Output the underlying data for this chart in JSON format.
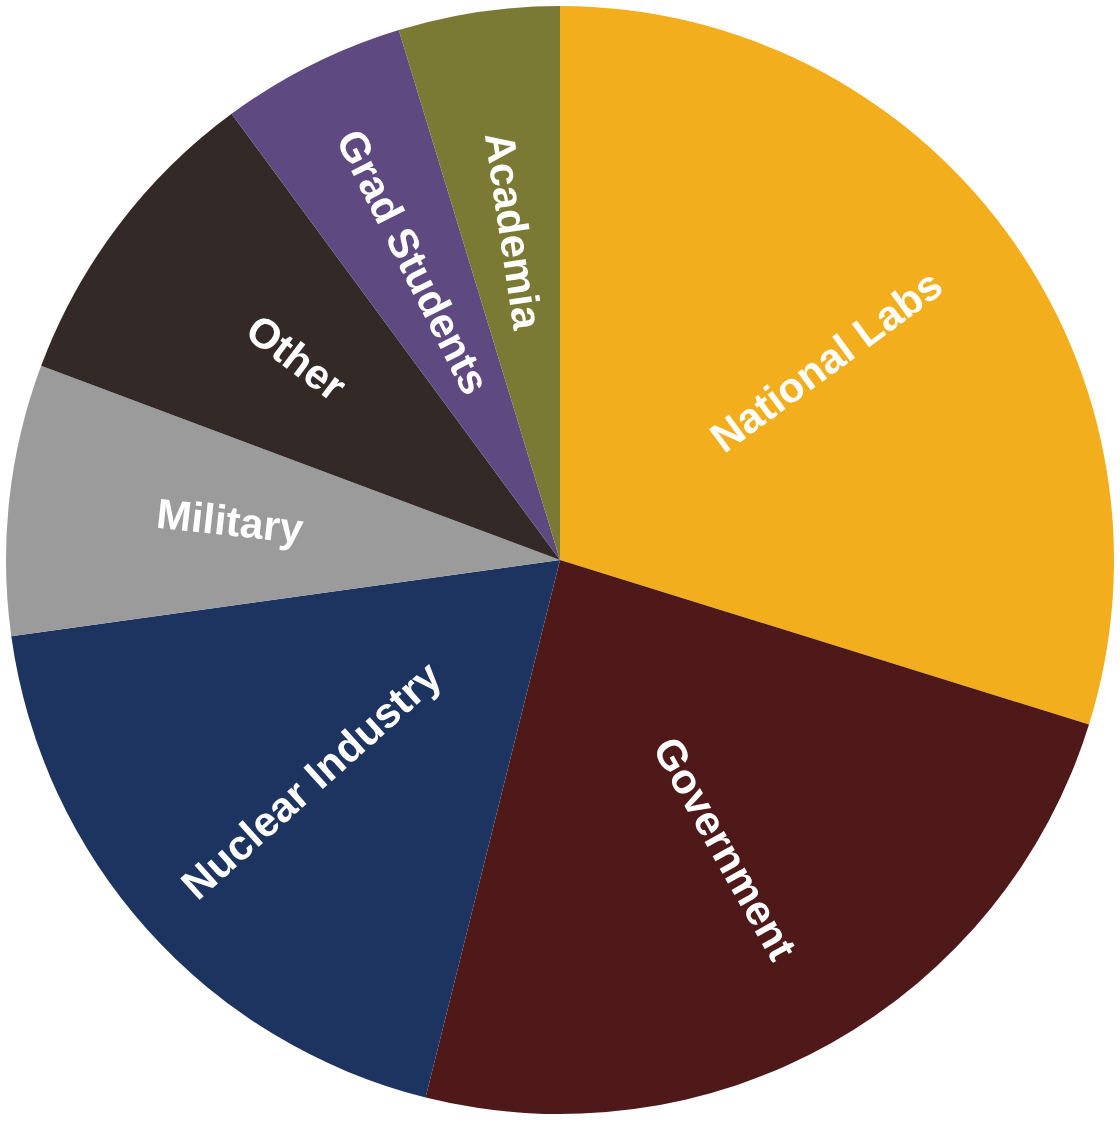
{
  "chart_data": {
    "type": "pie",
    "categories": [
      "National Labs",
      "Government",
      "Nuclear Industry",
      "Military",
      "Other",
      "Grad Students",
      "Academia"
    ],
    "values": [
      29.8,
      24.1,
      18.9,
      7.9,
      9.2,
      5.4,
      4.7
    ],
    "colors": [
      "#f2ae1c",
      "#4f1819",
      "#1d3461",
      "#9b9b9b",
      "#332a28",
      "#5e4a80",
      "#7a7a35"
    ],
    "legend": false
  }
}
